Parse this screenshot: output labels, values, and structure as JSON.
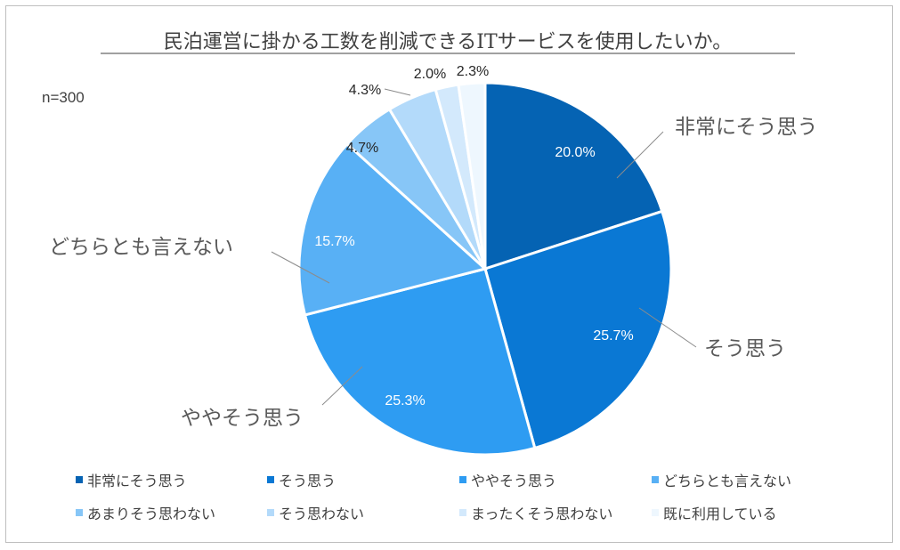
{
  "chart_data": {
    "type": "pie",
    "title": "民泊運営に掛かる工数を削減できるITサービスを使用したいか。",
    "sample_size": "n=300",
    "categories": [
      "非常にそう思う",
      "そう思う",
      "ややそう思う",
      "どちらとも言えない",
      "あまりそう思わない",
      "そう思わない",
      "まったくそう思わない",
      "既に利用している"
    ],
    "values": [
      20.0,
      25.7,
      25.3,
      15.7,
      4.7,
      4.3,
      2.0,
      2.3
    ],
    "value_labels": [
      "20.0%",
      "25.7%",
      "25.3%",
      "15.7%",
      "4.7%",
      "4.3%",
      "2.0%",
      "2.3%"
    ],
    "colors": [
      "#0563b3",
      "#0a78d4",
      "#2e9cf2",
      "#58b0f5",
      "#87c6f7",
      "#b3dafa",
      "#d3e9fc",
      "#eef7fe"
    ],
    "callout_categories": [
      "非常にそう思う",
      "そう思う",
      "ややそう思う",
      "どちらとも言えない"
    ],
    "legend_position": "bottom"
  }
}
